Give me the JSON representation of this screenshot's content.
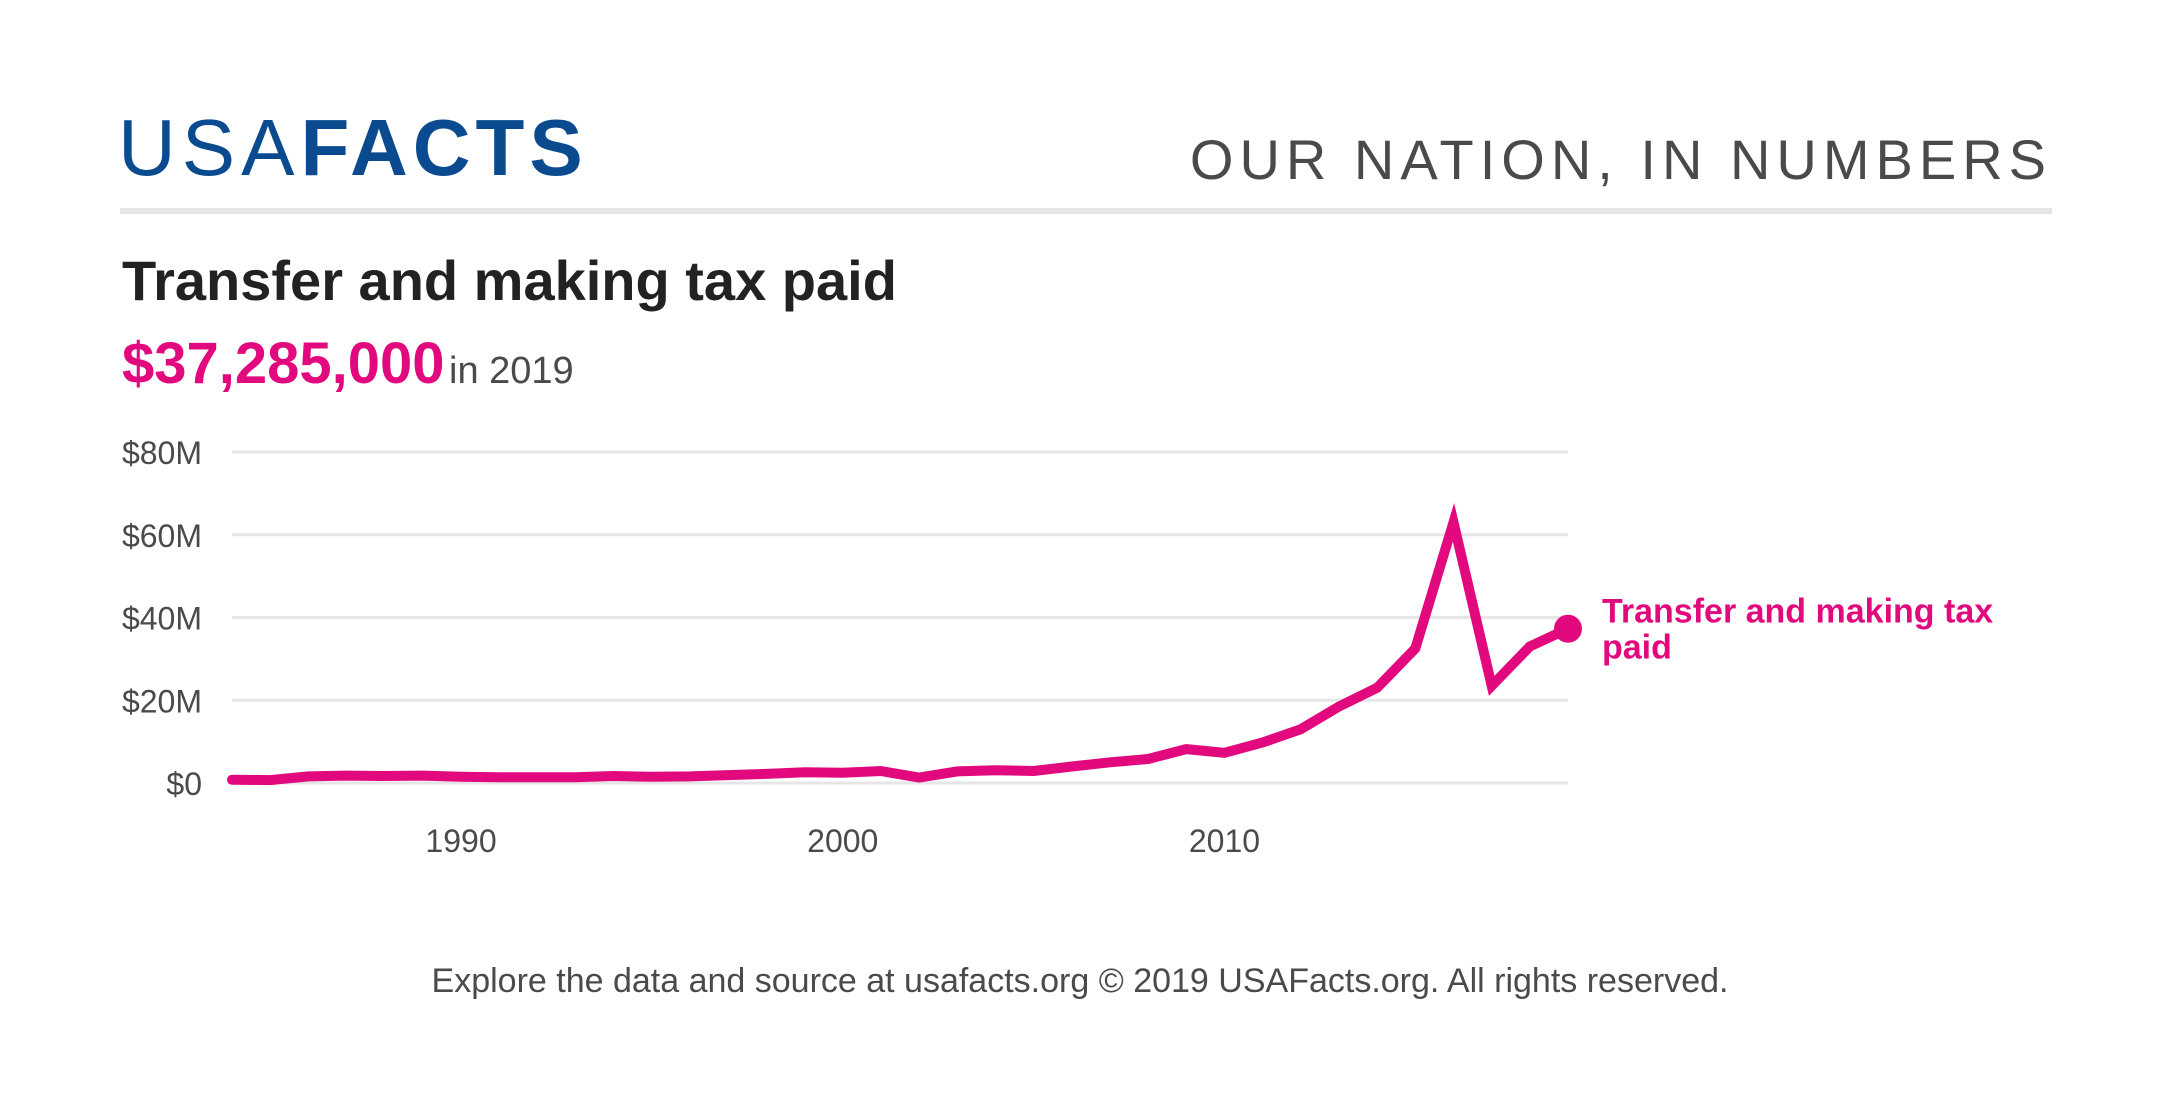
{
  "header": {
    "logo_light": "USA",
    "logo_bold": "FACTS",
    "tagline": "OUR NATION, IN NUMBERS"
  },
  "title": "Transfer and making tax paid",
  "headline": {
    "value": "$37,285,000",
    "suffix": "in 2019"
  },
  "footer": "Explore the data and source at usafacts.org © 2019 USAFacts.org. All rights reserved.",
  "colors": {
    "brand": "#0a4b8f",
    "series": "#e2097f",
    "grid": "#e6e6e6",
    "text": "#4a4a4a"
  },
  "chart_data": {
    "type": "line",
    "title": "",
    "xlabel": "",
    "ylabel": "",
    "xlim": [
      1984,
      2019
    ],
    "ylim": [
      0,
      80000000
    ],
    "grid": true,
    "yticks": [
      {
        "value": 0,
        "label": "$0"
      },
      {
        "value": 20000000,
        "label": "$20M"
      },
      {
        "value": 40000000,
        "label": "$40M"
      },
      {
        "value": 60000000,
        "label": "$60M"
      },
      {
        "value": 80000000,
        "label": "$80M"
      }
    ],
    "xticks": [
      {
        "value": 1990,
        "label": "1990"
      },
      {
        "value": 2000,
        "label": "2000"
      },
      {
        "value": 2010,
        "label": "2010"
      }
    ],
    "series": [
      {
        "name": "Transfer and making tax paid",
        "label_lines": [
          "Transfer and making tax",
          "paid"
        ],
        "x": [
          1984,
          1985,
          1986,
          1987,
          1988,
          1989,
          1990,
          1991,
          1992,
          1993,
          1994,
          1995,
          1996,
          1997,
          1998,
          1999,
          2000,
          2001,
          2002,
          2003,
          2004,
          2005,
          2006,
          2007,
          2008,
          2009,
          2010,
          2011,
          2012,
          2013,
          2014,
          2015,
          2016,
          2017,
          2018,
          2019
        ],
        "values": [
          800000,
          700000,
          1600000,
          1800000,
          1700000,
          1800000,
          1500000,
          1400000,
          1400000,
          1400000,
          1700000,
          1500000,
          1600000,
          1900000,
          2200000,
          2600000,
          2500000,
          2900000,
          1300000,
          2800000,
          3100000,
          2900000,
          4000000,
          5000000,
          5800000,
          8200000,
          7300000,
          9800000,
          13000000,
          18500000,
          23000000,
          32500000,
          63000000,
          23500000,
          33000000,
          37285000
        ]
      }
    ]
  }
}
